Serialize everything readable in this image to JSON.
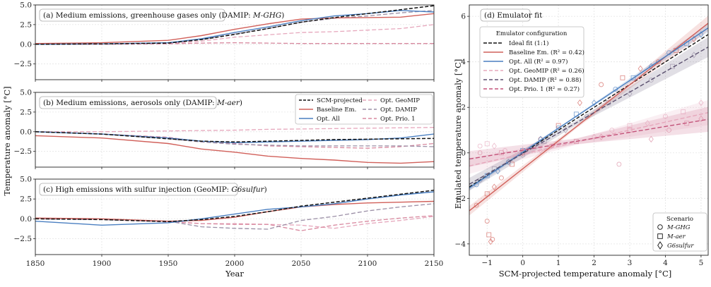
{
  "colors": {
    "scm": "#111111",
    "baseline": "#d1605a",
    "opt_all": "#4a7fc1",
    "opt_geomip": "#e6a7bc",
    "opt_damip": "#9b8fa6",
    "opt_prio1": "#d98aa0",
    "ideal": "#111111",
    "damip_fit": "#5a4f6e",
    "prio1_fit": "#c3537a"
  },
  "timeseries": {
    "ylabel": "Temperature anomaly [°C]",
    "xlabel": "Year",
    "xticks": [
      "1850",
      "1900",
      "1950",
      "2000",
      "2050",
      "2100",
      "2150"
    ],
    "yticks": [
      "5.0",
      "2.5",
      "0.0",
      "−2.5"
    ],
    "legend": [
      "SCM-projected",
      "Baseline Em.",
      "Opt. All",
      "Opt. GeoMIP",
      "Opt. DAMIP",
      "Opt. Prio. 1"
    ],
    "panels": [
      {
        "title": "(a) Medium emissions, greenhouse gases only (DAMIP: ",
        "exp": "M-GHG",
        "close": ")"
      },
      {
        "title": "(b) Medium emissions, aerosols only (DAMIP: ",
        "exp": "M-aer",
        "close": ")"
      },
      {
        "title": "(c) High emissions with sulfur injection (GeoMIP: ",
        "exp": "G6sulfur",
        "close": ")"
      }
    ]
  },
  "scatter": {
    "title": "(d) Emulator fit",
    "xlabel": "SCM-projected temperature anomaly [°C]",
    "ylabel": "Emulated temperature anomaly [°C]",
    "xticks": [
      "−1",
      "0",
      "1",
      "2",
      "3",
      "4",
      "5"
    ],
    "yticks": [
      "6",
      "4",
      "2",
      "0",
      "−2",
      "−4"
    ],
    "legend_title": "Emulator configuration",
    "legend": [
      {
        "label": "Ideal fit (1:1)",
        "r2": ""
      },
      {
        "label": "Baseline Em. ",
        "r2": "(R² = 0.42)"
      },
      {
        "label": "Opt. All ",
        "r2": "(R² = 0.97)"
      },
      {
        "label": "Opt. GeoMIP ",
        "r2": "(R² = 0.26)"
      },
      {
        "label": "Opt. DAMIP ",
        "r2": "(R² = 0.88)"
      },
      {
        "label": "Opt. Prio. 1 ",
        "r2": "(R² = 0.27)"
      }
    ],
    "scenario_title": "Scenario",
    "scenarios": [
      "M-GHG",
      "M-aer",
      "G6sulfur"
    ]
  },
  "chart_data": [
    {
      "type": "line",
      "title": "(a) Medium emissions, greenhouse gases only (DAMIP: M-GHG)",
      "xlabel": "Year",
      "ylabel": "Temperature anomaly [°C]",
      "xlim": [
        1850,
        2150
      ],
      "ylim": [
        -4.5,
        5.0
      ],
      "x": [
        1850,
        1900,
        1950,
        1975,
        2000,
        2025,
        2050,
        2075,
        2100,
        2125,
        2150
      ],
      "series": [
        {
          "name": "SCM-projected",
          "values": [
            0.0,
            0.05,
            0.15,
            0.6,
            1.25,
            2.0,
            2.8,
            3.4,
            3.9,
            4.4,
            4.9
          ]
        },
        {
          "name": "Baseline Em.",
          "values": [
            0.1,
            0.2,
            0.5,
            1.1,
            1.9,
            2.6,
            3.2,
            3.35,
            3.4,
            3.45,
            3.9
          ]
        },
        {
          "name": "Opt. All",
          "values": [
            0.0,
            0.05,
            0.2,
            0.7,
            1.5,
            2.2,
            3.0,
            3.6,
            3.9,
            4.3,
            4.1
          ]
        },
        {
          "name": "Opt. GeoMIP",
          "values": [
            0.0,
            0.0,
            0.1,
            0.4,
            0.9,
            1.2,
            1.5,
            1.6,
            1.8,
            2.0,
            2.5
          ]
        },
        {
          "name": "Opt. DAMIP",
          "values": [
            0.0,
            0.05,
            0.15,
            0.6,
            1.3,
            2.0,
            2.8,
            3.3,
            3.6,
            4.0,
            4.3
          ]
        },
        {
          "name": "Opt. Prio. 1",
          "values": [
            0.0,
            0.0,
            0.05,
            0.15,
            0.2,
            0.15,
            0.1,
            0.1,
            0.1,
            0.1,
            0.1
          ]
        }
      ]
    },
    {
      "type": "line",
      "title": "(b) Medium emissions, aerosols only (DAMIP: M-aer)",
      "xlabel": "Year",
      "ylabel": "Temperature anomaly [°C]",
      "xlim": [
        1850,
        2150
      ],
      "ylim": [
        -4.5,
        5.0
      ],
      "x": [
        1850,
        1900,
        1950,
        1975,
        2000,
        2025,
        2050,
        2075,
        2100,
        2125,
        2150
      ],
      "series": [
        {
          "name": "SCM-projected",
          "values": [
            0.0,
            -0.3,
            -0.9,
            -1.2,
            -1.3,
            -1.2,
            -1.1,
            -1.0,
            -0.95,
            -0.9,
            -0.85
          ]
        },
        {
          "name": "Baseline Em.",
          "values": [
            -0.5,
            -0.8,
            -1.5,
            -2.2,
            -2.6,
            -3.1,
            -3.4,
            -3.6,
            -3.9,
            -4.0,
            -3.8
          ]
        },
        {
          "name": "Opt. All",
          "values": [
            0.0,
            -0.3,
            -0.8,
            -1.2,
            -1.4,
            -1.3,
            -1.2,
            -1.1,
            -1.0,
            -0.8,
            -0.3
          ]
        },
        {
          "name": "Opt. GeoMIP",
          "values": [
            0.0,
            0.0,
            0.1,
            0.15,
            0.2,
            0.3,
            0.35,
            0.4,
            0.45,
            0.5,
            0.55
          ]
        },
        {
          "name": "Opt. DAMIP",
          "values": [
            0.0,
            -0.3,
            -0.9,
            -1.3,
            -1.6,
            -1.7,
            -1.8,
            -1.8,
            -1.8,
            -1.8,
            -1.9
          ]
        },
        {
          "name": "Opt. Prio. 1",
          "values": [
            0.0,
            -0.3,
            -0.7,
            -1.3,
            -1.5,
            -1.8,
            -1.9,
            -2.0,
            -2.1,
            -1.9,
            -1.5
          ]
        }
      ]
    },
    {
      "type": "line",
      "title": "(c) High emissions with sulfur injection (GeoMIP: G6sulfur)",
      "xlabel": "Year",
      "ylabel": "Temperature anomaly [°C]",
      "xlim": [
        1850,
        2150
      ],
      "ylim": [
        -4.5,
        5.0
      ],
      "x": [
        1850,
        1900,
        1950,
        1975,
        2000,
        2025,
        2050,
        2075,
        2100,
        2125,
        2150
      ],
      "series": [
        {
          "name": "SCM-projected",
          "values": [
            0.0,
            -0.1,
            -0.35,
            -0.1,
            0.3,
            0.9,
            1.6,
            2.1,
            2.6,
            3.1,
            3.6
          ]
        },
        {
          "name": "Baseline Em.",
          "values": [
            0.1,
            0.0,
            -0.3,
            -0.2,
            0.2,
            0.9,
            1.5,
            1.8,
            2.0,
            2.1,
            2.2
          ]
        },
        {
          "name": "Opt. All",
          "values": [
            -0.3,
            -0.8,
            -0.5,
            0.0,
            0.6,
            1.2,
            1.5,
            1.9,
            2.5,
            3.0,
            3.4
          ]
        },
        {
          "name": "Opt. GeoMIP",
          "values": [
            0.0,
            -0.1,
            -0.4,
            -0.6,
            -0.6,
            -0.7,
            -0.8,
            -1.2,
            -0.6,
            -0.2,
            0.3
          ]
        },
        {
          "name": "Opt. DAMIP",
          "values": [
            0.0,
            -0.1,
            -0.3,
            -1.0,
            -1.2,
            -1.3,
            -0.2,
            0.3,
            1.0,
            1.5,
            1.9
          ]
        },
        {
          "name": "Opt. Prio. 1",
          "values": [
            0.0,
            -0.1,
            -0.3,
            -0.6,
            -0.7,
            -0.7,
            -1.5,
            -0.8,
            -0.3,
            0.1,
            0.4
          ]
        }
      ]
    },
    {
      "type": "scatter",
      "title": "(d) Emulator fit",
      "xlabel": "SCM-projected temperature anomaly [°C]",
      "ylabel": "Emulated temperature anomaly [°C]",
      "xlim": [
        -1.5,
        5.2
      ],
      "ylim": [
        -4.5,
        6.5
      ],
      "fits": [
        {
          "name": "Ideal fit (1:1)",
          "slope": 1.0,
          "intercept": 0.0
        },
        {
          "name": "Baseline Em.",
          "r2": 0.42,
          "slope": 1.23,
          "intercept": -0.7
        },
        {
          "name": "Opt. All",
          "r2": 0.97,
          "slope": 1.05,
          "intercept": 0.03
        },
        {
          "name": "Opt. GeoMIP",
          "r2": 0.26,
          "slope": 0.35,
          "intercept": -0.05
        },
        {
          "name": "Opt. DAMIP",
          "r2": 0.88,
          "slope": 0.9,
          "intercept": -0.03
        },
        {
          "name": "Opt. Prio. 1",
          "r2": 0.27,
          "slope": 0.26,
          "intercept": 0.12
        }
      ],
      "series": [
        {
          "name": "Baseline Em.",
          "points": [
            [
              -1.3,
              -2.3
            ],
            [
              -1.0,
              -1.8
            ],
            [
              -0.8,
              -1.5
            ],
            [
              -0.6,
              -1.1
            ],
            [
              -0.3,
              -0.5
            ],
            [
              0.0,
              0.0
            ],
            [
              0.5,
              0.6
            ],
            [
              1.0,
              1.2
            ],
            [
              1.6,
              2.2
            ],
            [
              2.2,
              3.0
            ],
            [
              2.8,
              3.3
            ],
            [
              3.3,
              3.7
            ],
            [
              3.8,
              4.0
            ],
            [
              4.3,
              4.5
            ],
            [
              4.8,
              5.0
            ],
            [
              -1.0,
              -3.0
            ],
            [
              -0.95,
              -3.6
            ],
            [
              -0.9,
              -3.9
            ],
            [
              -0.85,
              -3.8
            ]
          ]
        },
        {
          "name": "Opt. All",
          "points": [
            [
              -1.3,
              -1.4
            ],
            [
              -1.0,
              -1.0
            ],
            [
              -0.7,
              -0.8
            ],
            [
              -0.4,
              -0.4
            ],
            [
              0.0,
              0.1
            ],
            [
              0.5,
              0.6
            ],
            [
              1.0,
              1.1
            ],
            [
              1.5,
              1.7
            ],
            [
              2.0,
              2.2
            ],
            [
              2.6,
              2.8
            ],
            [
              3.1,
              3.3
            ],
            [
              3.6,
              3.8
            ],
            [
              4.1,
              4.4
            ],
            [
              4.6,
              4.8
            ],
            [
              5.0,
              5.2
            ]
          ]
        },
        {
          "name": "Opt. GeoMIP",
          "points": [
            [
              -1.2,
              0.3
            ],
            [
              -1.0,
              0.4
            ],
            [
              -0.8,
              0.3
            ],
            [
              -0.5,
              0.1
            ],
            [
              0.0,
              0.0
            ],
            [
              0.5,
              0.1
            ],
            [
              1.0,
              0.4
            ],
            [
              1.5,
              0.5
            ],
            [
              2.0,
              0.7
            ],
            [
              2.5,
              1.0
            ],
            [
              3.0,
              1.2
            ],
            [
              3.5,
              1.3
            ],
            [
              4.0,
              1.6
            ],
            [
              4.5,
              1.8
            ],
            [
              5.0,
              2.2
            ]
          ]
        },
        {
          "name": "Opt. DAMIP",
          "points": [
            [
              -1.2,
              -1.2
            ],
            [
              -0.8,
              -0.7
            ],
            [
              -0.4,
              -0.4
            ],
            [
              0.0,
              -0.1
            ],
            [
              0.6,
              0.5
            ],
            [
              1.2,
              1.0
            ],
            [
              1.8,
              1.6
            ],
            [
              2.4,
              2.2
            ],
            [
              3.0,
              2.6
            ],
            [
              3.6,
              3.2
            ],
            [
              4.2,
              3.8
            ],
            [
              4.8,
              4.3
            ]
          ]
        },
        {
          "name": "Opt. Prio. 1",
          "points": [
            [
              -1.2,
              0.0
            ],
            [
              -0.6,
              0.0
            ],
            [
              0.0,
              0.1
            ],
            [
              0.8,
              0.3
            ],
            [
              1.5,
              0.5
            ],
            [
              2.2,
              0.7
            ],
            [
              2.7,
              -0.5
            ],
            [
              3.0,
              1.0
            ],
            [
              3.6,
              0.6
            ],
            [
              4.1,
              1.0
            ],
            [
              4.6,
              1.3
            ],
            [
              5.0,
              1.5
            ]
          ]
        }
      ]
    }
  ]
}
